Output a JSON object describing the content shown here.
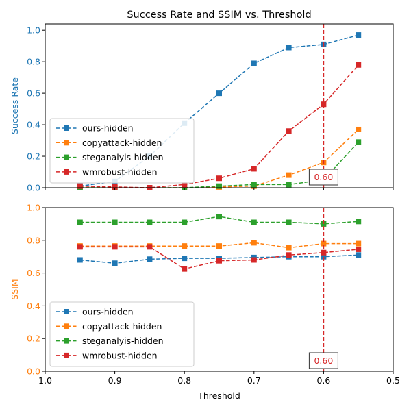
{
  "chart_data": {
    "type": "line",
    "title": "Success Rate and SSIM vs. Threshold",
    "x": [
      0.95,
      0.9,
      0.85,
      0.8,
      0.75,
      0.7,
      0.65,
      0.6,
      0.55
    ],
    "xlabel": "Threshold",
    "xlim": [
      1.0,
      0.5
    ],
    "xtick_labels": [
      "1.0",
      "0.9",
      "0.8",
      "0.7",
      "0.6",
      "0.5"
    ],
    "threshold_line": {
      "x": 0.6,
      "label": "0.60",
      "color": "#d62728"
    },
    "panels": [
      {
        "name": "success",
        "ylabel": "Success Rate",
        "ylabel_color": "#1f77b4",
        "ylim": [
          0,
          1.04
        ],
        "ytick_labels": [
          "0.0",
          "0.2",
          "0.4",
          "0.6",
          "0.8",
          "1.0"
        ],
        "legend_position": "lower-left",
        "series": [
          {
            "name": "ours-hidden",
            "color": "#1f77b4",
            "values": [
              0.01,
              0.04,
              0.2,
              0.41,
              0.6,
              0.79,
              0.89,
              0.91,
              0.97
            ]
          },
          {
            "name": "copyattack-hidden",
            "color": "#ff7f0e",
            "values": [
              0.0,
              0.0,
              0.0,
              0.0,
              0.005,
              0.01,
              0.08,
              0.16,
              0.37
            ]
          },
          {
            "name": "steganalyis-hidden",
            "color": "#2ca02c",
            "values": [
              0.0,
              0.0,
              0.0,
              0.0,
              0.01,
              0.02,
              0.02,
              0.05,
              0.29
            ]
          },
          {
            "name": "wmrobust-hidden",
            "color": "#d62728",
            "values": [
              0.01,
              0.005,
              0.0,
              0.02,
              0.06,
              0.12,
              0.36,
              0.53,
              0.78
            ]
          }
        ]
      },
      {
        "name": "ssim",
        "ylabel": "SSIM",
        "ylabel_color": "#ff7f0e",
        "ylim": [
          0,
          1.0
        ],
        "ytick_labels": [
          "0.0",
          "0.2",
          "0.4",
          "0.6",
          "0.8",
          "1.0"
        ],
        "legend_position": "lower-left",
        "series": [
          {
            "name": "ours-hidden",
            "color": "#1f77b4",
            "values": [
              0.68,
              0.66,
              0.685,
              0.69,
              0.69,
              0.695,
              0.7,
              0.7,
              0.71
            ]
          },
          {
            "name": "copyattack-hidden",
            "color": "#ff7f0e",
            "values": [
              0.765,
              0.765,
              0.765,
              0.765,
              0.765,
              0.785,
              0.755,
              0.78,
              0.78
            ]
          },
          {
            "name": "steganalyis-hidden",
            "color": "#2ca02c",
            "values": [
              0.91,
              0.91,
              0.91,
              0.91,
              0.945,
              0.91,
              0.91,
              0.9,
              0.915
            ]
          },
          {
            "name": "wmrobust-hidden",
            "color": "#d62728",
            "values": [
              0.76,
              0.76,
              0.76,
              0.625,
              0.675,
              0.68,
              0.71,
              0.725,
              0.745
            ]
          }
        ]
      }
    ]
  }
}
